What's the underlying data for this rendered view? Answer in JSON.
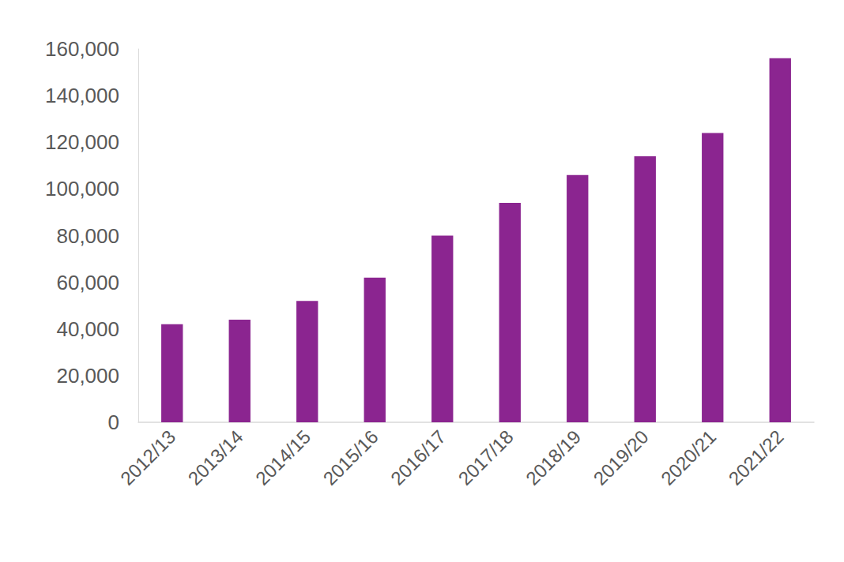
{
  "chart_data": {
    "type": "bar",
    "categories": [
      "2012/13",
      "2013/14",
      "2014/15",
      "2015/16",
      "2016/17",
      "2017/18",
      "2018/19",
      "2019/20",
      "2020/21",
      "2021/22"
    ],
    "values": [
      42000,
      44000,
      52000,
      62000,
      80000,
      94000,
      106000,
      114000,
      124000,
      156000
    ],
    "color": "#8b2590",
    "ylim": [
      0,
      160000
    ],
    "yticks": [
      0,
      {
        "value": 20000,
        "label": "20,000"
      },
      {
        "value": 40000,
        "label": "40,000"
      },
      {
        "value": 60000,
        "label": "60,000"
      },
      {
        "value": 80000,
        "label": "80,000"
      },
      {
        "value": 100000,
        "label": "100,000"
      },
      {
        "value": 120000,
        "label": "120,000"
      },
      {
        "value": 140000,
        "label": "140,000"
      },
      {
        "value": 160000,
        "label": "160,000"
      }
    ],
    "grid": false
  }
}
